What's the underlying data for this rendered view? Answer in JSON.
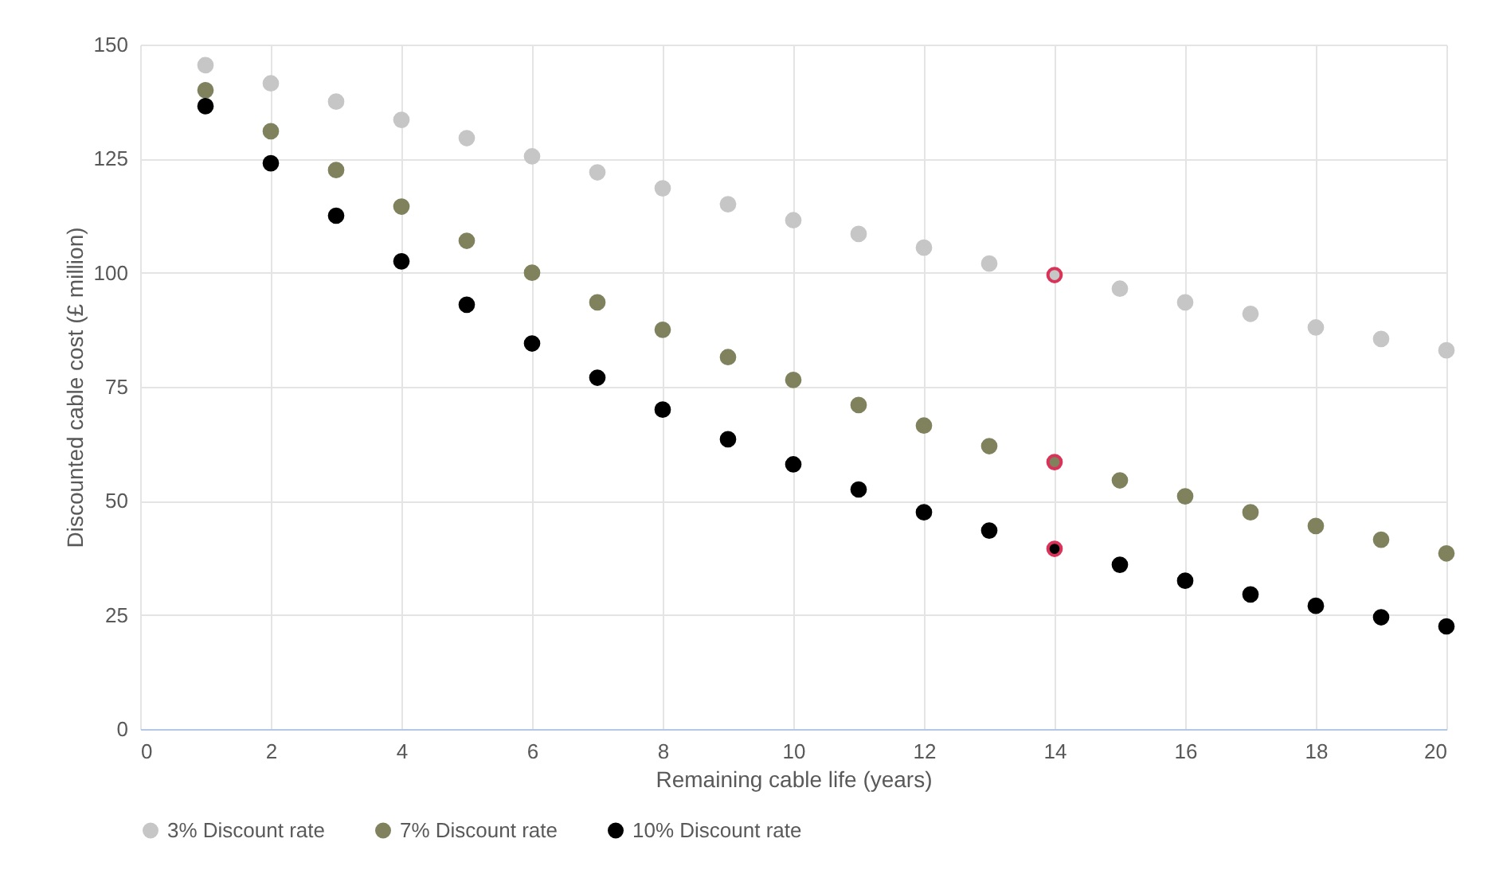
{
  "chart_data": {
    "type": "scatter",
    "xlabel": "Remaining cable life (years)",
    "ylabel": "Discounted cable cost (£ million)",
    "x": [
      1,
      2,
      3,
      4,
      5,
      6,
      7,
      8,
      9,
      10,
      11,
      12,
      13,
      14,
      15,
      16,
      17,
      18,
      19,
      20
    ],
    "series": [
      {
        "name": "3% Discount rate",
        "color": "#c6c6c6",
        "colors": [
          "#c6c6c6",
          "#c6c6c6",
          "#c6c6c6",
          "#c6c6c6",
          "#c6c6c6",
          "#c6c6c6",
          "#c6c6c6",
          "#c6c6c6",
          "#c6c6c6",
          "#c6c6c6",
          "#c6c6c6",
          "#c6c6c6",
          "#c6c6c6",
          "#d8345a",
          "#c6c6c6",
          "#c6c6c6",
          "#c6c6c6",
          "#c6c6c6",
          "#c6c6c6",
          "#c6c6c6"
        ],
        "values": [
          145.5,
          141.5,
          137.5,
          133.5,
          129.5,
          125.5,
          122,
          118.5,
          115,
          111.5,
          108.5,
          105.5,
          102,
          99.5,
          96.5,
          93.5,
          91,
          88,
          85.5,
          83
        ]
      },
      {
        "name": "7% Discount rate",
        "color": "#7f825c",
        "colors": [
          "#7f825c",
          "#7f825c",
          "#7f825c",
          "#7f825c",
          "#7f825c",
          "#7f825c",
          "#7f825c",
          "#7f825c",
          "#7f825c",
          "#7f825c",
          "#7f825c",
          "#7f825c",
          "#7f825c",
          "#d8345a",
          "#7f825c",
          "#7f825c",
          "#7f825c",
          "#7f825c",
          "#7f825c",
          "#7f825c"
        ],
        "values": [
          140,
          131,
          122.5,
          114.5,
          107,
          100,
          93.5,
          87.5,
          81.5,
          76.5,
          71,
          66.5,
          62,
          58.5,
          54.5,
          51,
          47.5,
          44.5,
          41.5,
          38.5
        ]
      },
      {
        "name": "10% Discount rate",
        "color": "#000000",
        "colors": [
          "#000000",
          "#000000",
          "#000000",
          "#000000",
          "#000000",
          "#000000",
          "#000000",
          "#000000",
          "#000000",
          "#000000",
          "#000000",
          "#000000",
          "#000000",
          "#d8345a",
          "#000000",
          "#000000",
          "#000000",
          "#000000",
          "#000000",
          "#000000"
        ],
        "values": [
          136.5,
          124,
          112.5,
          102.5,
          93,
          84.5,
          77,
          70,
          63.5,
          58,
          52.5,
          47.5,
          43.5,
          39.5,
          36,
          32.5,
          29.5,
          27,
          24.5,
          22.5
        ]
      }
    ],
    "xlim": [
      0,
      20
    ],
    "xticks": [
      0,
      2,
      4,
      6,
      8,
      10,
      12,
      14,
      16,
      18,
      20
    ],
    "ylim": [
      0,
      150
    ],
    "yticks": [
      0,
      25,
      50,
      75,
      100,
      125,
      150
    ],
    "grid": true,
    "legend": "bottom",
    "marker": "circle"
  }
}
